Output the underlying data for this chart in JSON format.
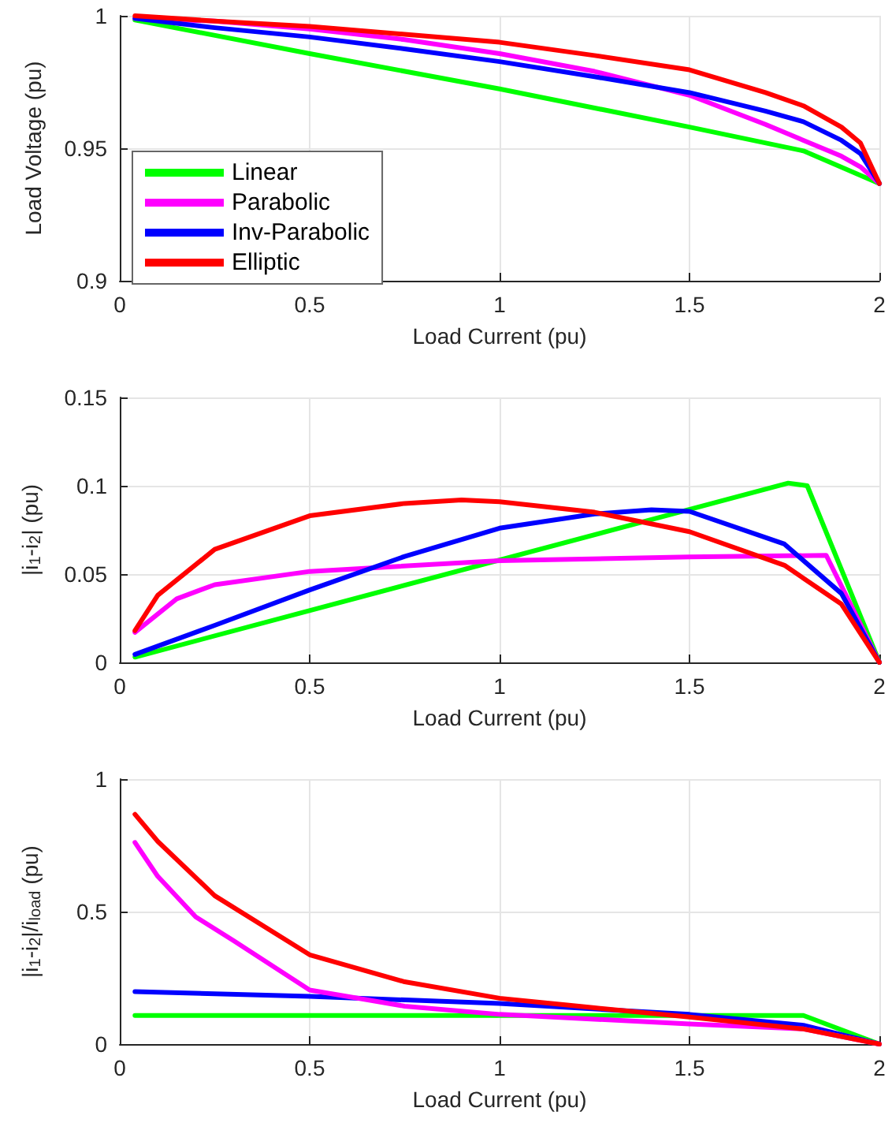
{
  "chart_data": [
    {
      "type": "line",
      "xlabel": "Load Current (pu)",
      "ylabel": "Load Voltage (pu)",
      "xlim": [
        0,
        2
      ],
      "ylim": [
        0.9,
        1
      ],
      "xticks": [
        0,
        0.5,
        1,
        1.5,
        2
      ],
      "yticks": [
        0.9,
        0.95,
        1
      ],
      "grid": true,
      "legend": "bottom left",
      "marker": "none",
      "line_style": "solid",
      "series": [
        {
          "name": "Linear",
          "color": "#00ff00",
          "x": [
            0.04,
            0.5,
            1,
            1.5,
            1.8,
            2
          ],
          "values": [
            0.9984,
            0.9857,
            0.9724,
            0.958,
            0.949,
            0.9367
          ]
        },
        {
          "name": "Parabolic",
          "color": "#ff00ff",
          "x": [
            0.04,
            0.25,
            0.5,
            0.75,
            1,
            1.25,
            1.5,
            1.7,
            1.8,
            1.9,
            1.95,
            2
          ],
          "values": [
            0.999,
            0.998,
            0.995,
            0.991,
            0.9857,
            0.979,
            0.97,
            0.959,
            0.953,
            0.947,
            0.943,
            0.9367
          ]
        },
        {
          "name": "Inv-Parabolic",
          "color": "#0000ff",
          "x": [
            0.04,
            0.25,
            0.5,
            0.75,
            1,
            1.25,
            1.5,
            1.7,
            1.8,
            1.9,
            1.95,
            2
          ],
          "values": [
            0.999,
            0.9955,
            0.992,
            0.9875,
            0.9827,
            0.977,
            0.971,
            0.964,
            0.96,
            0.953,
            0.948,
            0.9367
          ]
        },
        {
          "name": "Elliptic",
          "color": "#ff0000",
          "x": [
            0.04,
            0.25,
            0.5,
            0.75,
            1,
            1.25,
            1.5,
            1.7,
            1.8,
            1.9,
            1.95,
            2
          ],
          "values": [
            1.0,
            0.998,
            0.996,
            0.993,
            0.99,
            0.985,
            0.9796,
            0.971,
            0.966,
            0.958,
            0.952,
            0.9367
          ]
        }
      ]
    },
    {
      "type": "line",
      "xlabel": "Load Current (pu)",
      "ylabel": "|i$_{1}$-i$_{2}$| (pu)",
      "xlim": [
        0,
        2
      ],
      "ylim": [
        0,
        0.15
      ],
      "xticks": [
        0,
        0.5,
        1,
        1.5,
        2
      ],
      "yticks": [
        0,
        0.05,
        0.1,
        0.15
      ],
      "grid": true,
      "legend": false,
      "marker": "none",
      "line_style": "solid",
      "series": [
        {
          "color": "#00ff00",
          "x": [
            0.04,
            1.76,
            1.81,
            2
          ],
          "values": [
            0.003,
            0.1015,
            0.1,
            0
          ]
        },
        {
          "color": "#ff00ff",
          "x": [
            0.04,
            0.15,
            0.25,
            0.5,
            1,
            1.5,
            1.86,
            2
          ],
          "values": [
            0.017,
            0.036,
            0.044,
            0.0515,
            0.0576,
            0.0597,
            0.0606,
            0
          ]
        },
        {
          "color": "#0000ff",
          "x": [
            0.04,
            0.25,
            0.5,
            0.75,
            1,
            1.25,
            1.4,
            1.5,
            1.75,
            1.9,
            2
          ],
          "values": [
            0.0045,
            0.021,
            0.041,
            0.06,
            0.076,
            0.084,
            0.0864,
            0.0855,
            0.067,
            0.039,
            0
          ]
        },
        {
          "color": "#ff0000",
          "x": [
            0.04,
            0.1,
            0.25,
            0.5,
            0.75,
            0.9,
            1,
            1.25,
            1.5,
            1.75,
            1.9,
            2
          ],
          "values": [
            0.018,
            0.038,
            0.064,
            0.083,
            0.09,
            0.092,
            0.091,
            0.085,
            0.074,
            0.055,
            0.033,
            0
          ]
        }
      ]
    },
    {
      "type": "line",
      "xlabel": "Load Current (pu)",
      "ylabel": "|i$_{1}$-i$_{2}$|/i$_{load}$ (pu)",
      "xlim": [
        0,
        2
      ],
      "ylim": [
        0,
        1
      ],
      "xticks": [
        0,
        0.5,
        1,
        1.5,
        2
      ],
      "yticks": [
        0,
        0.5,
        1
      ],
      "grid": true,
      "legend": false,
      "marker": "none",
      "line_style": "solid",
      "series": [
        {
          "color": "#00ff00",
          "x": [
            0.04,
            1.8,
            2
          ],
          "values": [
            0.108,
            0.108,
            0
          ]
        },
        {
          "color": "#0000ff",
          "x": [
            0.04,
            0.5,
            1,
            1.5,
            1.8,
            2
          ],
          "values": [
            0.198,
            0.18,
            0.153,
            0.112,
            0.071,
            0
          ]
        },
        {
          "color": "#ff00ff",
          "x": [
            0.04,
            0.1,
            0.2,
            0.3,
            0.5,
            0.75,
            1,
            1.5,
            1.8,
            2
          ],
          "values": [
            0.761,
            0.633,
            0.48,
            0.39,
            0.204,
            0.143,
            0.112,
            0.076,
            0.057,
            0
          ]
        },
        {
          "color": "#ff0000",
          "x": [
            0.04,
            0.1,
            0.25,
            0.5,
            0.75,
            1,
            1.25,
            1.5,
            1.8,
            2
          ],
          "values": [
            0.867,
            0.765,
            0.56,
            0.337,
            0.235,
            0.173,
            0.137,
            0.102,
            0.057,
            0
          ]
        }
      ]
    }
  ]
}
